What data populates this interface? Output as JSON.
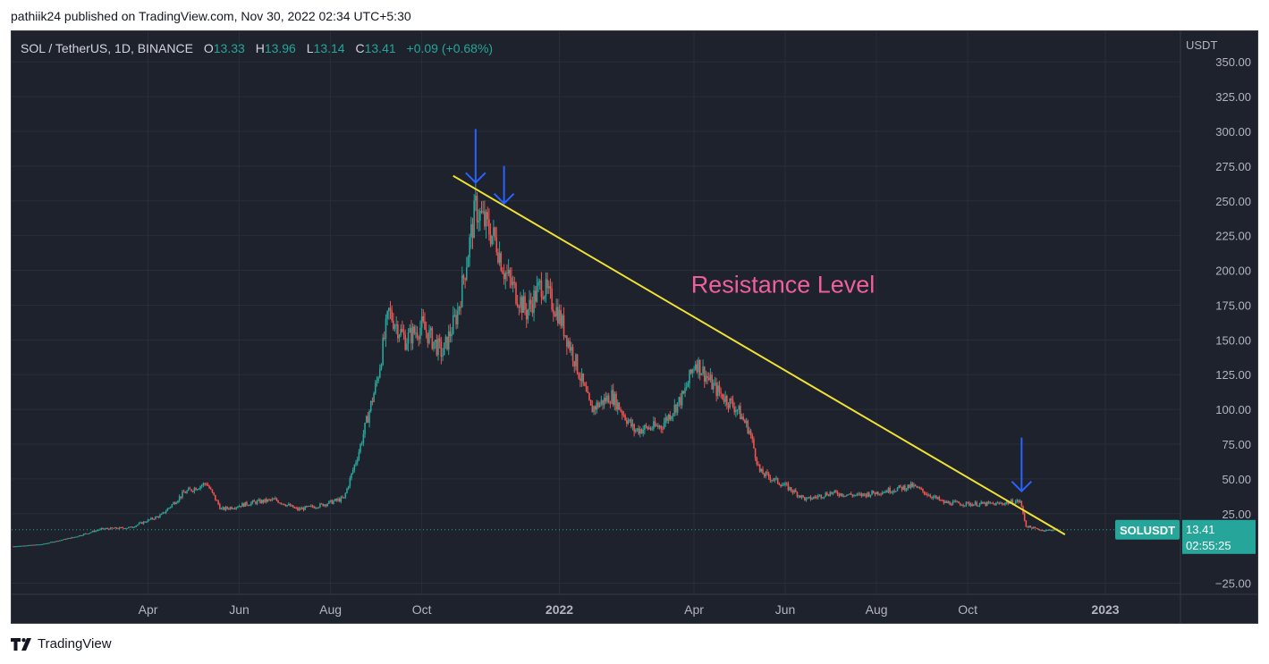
{
  "header": {
    "text": "pathiik24 published on TradingView.com, Nov 30, 2022 02:34 UTC+5:30"
  },
  "legend": {
    "symbol": "SOL / TetherUS, 1D, BINANCE",
    "o_label": "O",
    "o_value": "13.33",
    "h_label": "H",
    "h_value": "13.96",
    "l_label": "L",
    "l_value": "13.14",
    "c_label": "C",
    "c_value": "13.41",
    "change": "+0.09 (+0.68%)"
  },
  "price_scale": {
    "currency": "USDT",
    "ticks": [
      "350.00",
      "325.00",
      "300.00",
      "275.00",
      "250.00",
      "225.00",
      "200.00",
      "175.00",
      "150.00",
      "125.00",
      "100.00",
      "75.00",
      "50.00",
      "25.00",
      "−25.00"
    ]
  },
  "time_axis": {
    "ticks": [
      {
        "label": "Apr",
        "bold": false
      },
      {
        "label": "Jun",
        "bold": false
      },
      {
        "label": "Aug",
        "bold": false
      },
      {
        "label": "Oct",
        "bold": false
      },
      {
        "label": "2022",
        "bold": true
      },
      {
        "label": "Apr",
        "bold": false
      },
      {
        "label": "Jun",
        "bold": false
      },
      {
        "label": "Aug",
        "bold": false
      },
      {
        "label": "Oct",
        "bold": false
      },
      {
        "label": "2023",
        "bold": true
      }
    ]
  },
  "annotation": {
    "text": "Resistance Level",
    "color": "#ef5f98"
  },
  "price_badge": {
    "symbol": "SOLUSDT",
    "price": "13.41",
    "countdown": "02:55:25",
    "color": "#26a69a"
  },
  "footer": {
    "brand": "TradingView"
  },
  "colors": {
    "up": "#26a69a",
    "down": "#ef5350",
    "trendline": "#f0e232",
    "arrow": "#2962ff"
  },
  "chart_data": {
    "type": "candlestick",
    "title": "SOL / TetherUS, 1D, BINANCE",
    "ylabel": "USDT",
    "ylim": [
      -33,
      372
    ],
    "x": [
      "2021-01-01",
      "2021-01-20",
      "2021-02-10",
      "2021-03-01",
      "2021-03-20",
      "2021-04-10",
      "2021-04-25",
      "2021-05-10",
      "2021-05-20",
      "2021-06-10",
      "2021-06-25",
      "2021-07-10",
      "2021-07-25",
      "2021-08-10",
      "2021-08-20",
      "2021-09-01",
      "2021-09-09",
      "2021-09-20",
      "2021-10-01",
      "2021-10-15",
      "2021-10-25",
      "2021-11-06",
      "2021-11-20",
      "2021-11-25",
      "2021-12-10",
      "2021-12-20",
      "2021-12-31",
      "2022-01-10",
      "2022-01-22",
      "2022-02-05",
      "2022-02-20",
      "2022-03-10",
      "2022-03-25",
      "2022-04-02",
      "2022-04-15",
      "2022-04-30",
      "2022-05-08",
      "2022-05-15",
      "2022-06-01",
      "2022-06-15",
      "2022-07-01",
      "2022-07-20",
      "2022-08-10",
      "2022-08-25",
      "2022-09-15",
      "2022-10-01",
      "2022-10-20",
      "2022-11-05",
      "2022-11-09",
      "2022-11-20",
      "2022-11-30"
    ],
    "close": [
      1.5,
      3,
      8,
      14,
      15,
      24,
      40,
      47,
      28,
      33,
      35,
      28,
      31,
      36,
      70,
      120,
      170,
      150,
      160,
      140,
      170,
      245,
      220,
      200,
      170,
      190,
      170,
      140,
      100,
      110,
      85,
      88,
      110,
      135,
      115,
      100,
      85,
      55,
      45,
      35,
      40,
      38,
      42,
      45,
      33,
      32,
      32,
      34,
      16,
      13,
      13.41
    ],
    "annotations": [
      {
        "type": "trendline",
        "label": "Resistance Level",
        "from": {
          "x": "2021-10-22",
          "y": 268
        },
        "to": {
          "x": "2022-12-05",
          "y": 10
        }
      },
      {
        "type": "arrow",
        "x": "2021-11-06",
        "y": 258
      },
      {
        "type": "arrow",
        "x": "2021-11-25",
        "y": 243
      },
      {
        "type": "arrow",
        "x": "2022-11-06",
        "y": 36
      }
    ],
    "last_price": 13.41,
    "grid": true
  }
}
